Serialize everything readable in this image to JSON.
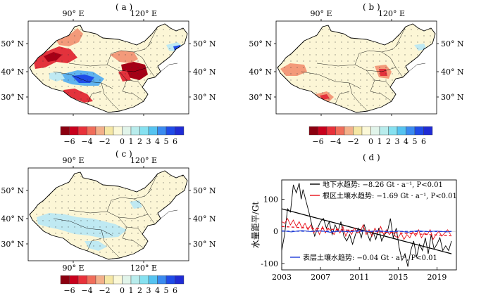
{
  "panels": {
    "a": {
      "label": "( a )"
    },
    "b": {
      "label": "( b )"
    },
    "c": {
      "label": "( c )"
    },
    "d": {
      "label": "( d )"
    }
  },
  "map_axes": {
    "top_ticks": [
      "90° E",
      "120° E"
    ],
    "bottom_ticks": [
      "90° E",
      "120° E"
    ],
    "left_ticks": [
      "50° N",
      "40° N",
      "30° N"
    ],
    "right_ticks": [
      "50° N",
      "40° N",
      "30° N"
    ]
  },
  "colorbar": {
    "ticks": [
      "−6",
      "−4",
      "−2",
      "0",
      "1",
      "2",
      "3",
      "4",
      "5",
      "6"
    ],
    "colors": [
      "#8b0010",
      "#c8001c",
      "#e8313a",
      "#f06d5a",
      "#f3b08a",
      "#f5e7a4",
      "#fbf8d8",
      "#e1f4ea",
      "#b8ecec",
      "#86e1f0",
      "#55c3f0",
      "#3a8bf0",
      "#1f4ce8",
      "#1f2bd4"
    ]
  },
  "map_colors": {
    "stipple": "#333333",
    "land": "#fcf6d6",
    "blue_light": "#bfe9f2",
    "blue_mid": "#5fb3ef",
    "blue_dark": "#1f4ce8",
    "red_light": "#f39a7a",
    "red_mid": "#e3323c",
    "red_dark": "#a50016"
  },
  "chart_data": {
    "type": "line",
    "xlabel": "",
    "ylabel": "水量距平/Gt",
    "xlim": [
      2003,
      2021
    ],
    "ylim": [
      -120,
      160
    ],
    "x_ticks": [
      2003,
      2007,
      2011,
      2015,
      2019
    ],
    "y_ticks": [
      100,
      0,
      -100
    ],
    "legend": [
      {
        "text": "地下水趋势: −8.26 Gt · a⁻¹, P<0.01",
        "color": "#000000"
      },
      {
        "text": "根区土壤水趋势: −1.69 Gt · a⁻¹, P<0.01",
        "color": "#e8101a"
      },
      {
        "text": "表层土壤水趋势: −0.04 Gt · a⁻¹, P<0.01",
        "color": "#1f3cd8"
      }
    ],
    "series": [
      {
        "name": "地下水",
        "color": "#000000",
        "x": [
          2003.0,
          2003.3,
          2003.6,
          2003.9,
          2004.2,
          2004.5,
          2004.8,
          2005.0,
          2005.2,
          2005.5,
          2005.8,
          2006.1,
          2006.4,
          2006.7,
          2007.0,
          2007.3,
          2007.6,
          2007.9,
          2008.2,
          2008.5,
          2008.8,
          2009.1,
          2009.4,
          2009.7,
          2010.0,
          2010.3,
          2010.6,
          2010.9,
          2011.2,
          2011.5,
          2011.8,
          2012.1,
          2012.4,
          2012.7,
          2013.0,
          2013.3,
          2013.6,
          2013.9,
          2014.2,
          2014.5,
          2014.8,
          2015.1,
          2015.4,
          2015.7,
          2016.0,
          2016.3,
          2016.6,
          2016.9,
          2017.2,
          2017.5,
          2017.8,
          2018.1,
          2018.4,
          2018.7,
          2019.0,
          2019.3,
          2019.6,
          2019.9,
          2020.2,
          2020.5
        ],
        "y": [
          -60,
          -10,
          70,
          60,
          145,
          120,
          150,
          100,
          130,
          95,
          60,
          20,
          -15,
          10,
          30,
          40,
          10,
          30,
          -10,
          20,
          0,
          30,
          -15,
          -30,
          -10,
          -40,
          -10,
          10,
          -20,
          20,
          -5,
          -30,
          0,
          -25,
          10,
          -30,
          -10,
          0,
          40,
          -20,
          10,
          -50,
          -90,
          -70,
          -110,
          -60,
          -30,
          -80,
          -40,
          -60,
          -20,
          -70,
          -10,
          -55,
          -40,
          -20,
          -60,
          -45,
          -60,
          -30
        ]
      },
      {
        "name": "地下水趋势",
        "color": "#000000",
        "x": [
          2003.0,
          2020.5
        ],
        "y": [
          70,
          -70
        ]
      },
      {
        "name": "根区土壤水",
        "color": "#e8101a",
        "x": [
          2003.0,
          2003.3,
          2003.6,
          2003.9,
          2004.2,
          2004.5,
          2004.8,
          2005.1,
          2005.4,
          2005.7,
          2006.0,
          2006.3,
          2006.6,
          2006.9,
          2007.2,
          2007.5,
          2007.8,
          2008.1,
          2008.4,
          2008.7,
          2009.0,
          2009.3,
          2009.6,
          2009.9,
          2010.2,
          2010.5,
          2010.8,
          2011.1,
          2011.4,
          2011.7,
          2012.0,
          2012.3,
          2012.6,
          2012.9,
          2013.2,
          2013.5,
          2013.8,
          2014.1,
          2014.4,
          2014.7,
          2015.0,
          2015.3,
          2015.6,
          2015.9,
          2016.2,
          2016.5,
          2016.8,
          2017.1,
          2017.4,
          2017.7,
          2018.0,
          2018.3,
          2018.6,
          2018.9,
          2019.2,
          2019.5,
          2019.8,
          2020.1,
          2020.4
        ],
        "y": [
          30,
          25,
          40,
          20,
          35,
          15,
          30,
          10,
          25,
          5,
          20,
          -5,
          10,
          -10,
          15,
          -5,
          10,
          0,
          -10,
          10,
          -5,
          15,
          -15,
          5,
          -10,
          10,
          -5,
          0,
          20,
          -10,
          5,
          -15,
          10,
          -5,
          15,
          -10,
          5,
          -10,
          0,
          -15,
          -20,
          -5,
          -25,
          -10,
          -20,
          0,
          -15,
          5,
          -20,
          -5,
          -10,
          5,
          -25,
          -10,
          0,
          -15,
          -5,
          5,
          -10
        ]
      },
      {
        "name": "根区土壤水趋势",
        "color": "#e8101a",
        "dashed": true,
        "x": [
          2003.0,
          2020.5
        ],
        "y": [
          15,
          -14
        ]
      },
      {
        "name": "表层土壤水",
        "color": "#1f3cd8",
        "x": [
          2003.0,
          2004.0,
          2005.0,
          2006.0,
          2007.0,
          2008.0,
          2009.0,
          2010.0,
          2011.0,
          2012.0,
          2013.0,
          2014.0,
          2015.0,
          2016.0,
          2017.0,
          2018.0,
          2019.0,
          2020.0,
          2020.5
        ],
        "y": [
          2,
          -2,
          3,
          -1,
          2,
          -3,
          1,
          -2,
          3,
          -1,
          2,
          -2,
          1,
          -3,
          2,
          -1,
          1,
          -2,
          0
        ]
      },
      {
        "name": "表层土壤水趋势",
        "color": "#1f3cd8",
        "dashed": true,
        "x": [
          2003.0,
          2020.5
        ],
        "y": [
          0.5,
          -0.5
        ]
      }
    ]
  }
}
